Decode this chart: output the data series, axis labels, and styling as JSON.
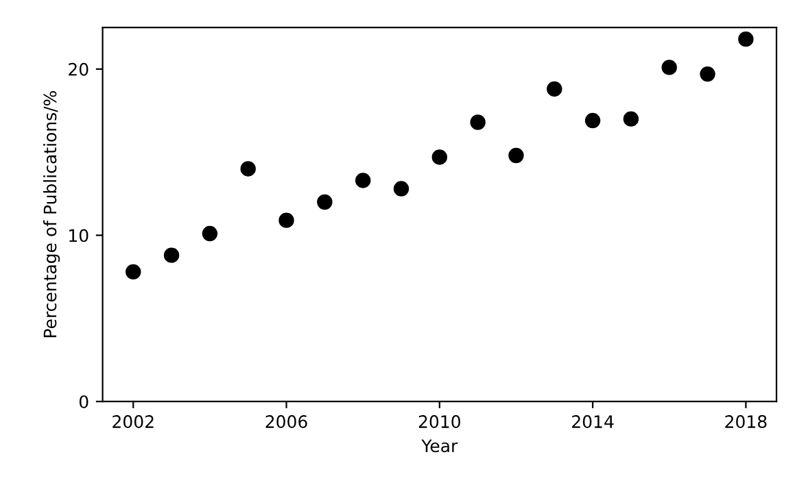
{
  "chart_data": {
    "type": "scatter",
    "xlabel": "Year",
    "ylabel": "Percentage of Publications/%",
    "x": [
      2002,
      2003,
      2004,
      2005,
      2006,
      2007,
      2008,
      2009,
      2010,
      2011,
      2012,
      2013,
      2014,
      2015,
      2016,
      2017,
      2018
    ],
    "series": [
      {
        "color": "#000000",
        "values": [
          7.8,
          8.8,
          10.1,
          14.0,
          10.9,
          12.0,
          13.3,
          12.8,
          14.7,
          16.8,
          14.8,
          18.8,
          16.9,
          17.0,
          20.1,
          19.7,
          21.8
        ]
      }
    ],
    "xlim": [
      2001.2,
      2018.8
    ],
    "xticks": [
      2002,
      2006,
      2010,
      2014,
      2018
    ],
    "ylim": [
      0,
      22.5
    ],
    "yticks": [
      0,
      10,
      20
    ],
    "marker": "circle"
  }
}
